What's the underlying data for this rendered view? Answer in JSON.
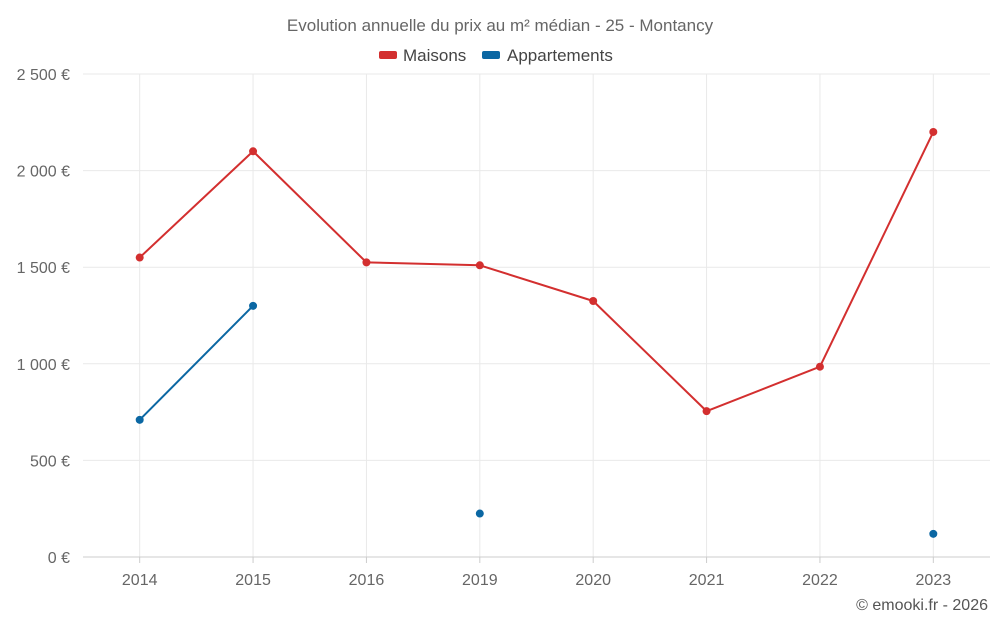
{
  "chart_data": {
    "type": "line",
    "title": "Evolution annuelle du prix au m² médian - 25 - Montancy",
    "categories": [
      "2014",
      "2015",
      "2016",
      "2019",
      "2020",
      "2021",
      "2022",
      "2023"
    ],
    "series": [
      {
        "name": "Maisons",
        "color": "#d32f2f",
        "values": [
          1550,
          2100,
          1525,
          1510,
          1325,
          755,
          985,
          2200
        ]
      },
      {
        "name": "Appartements",
        "color": "#0b67a3",
        "values": [
          710,
          1300,
          null,
          225,
          null,
          null,
          null,
          120
        ]
      }
    ],
    "ylim": [
      0,
      2500
    ],
    "yticks": [
      0,
      500,
      1000,
      1500,
      2000,
      2500
    ],
    "ytick_labels": [
      "0 €",
      "500 €",
      "1 000 €",
      "1 500 €",
      "2 000 €",
      "2 500 €"
    ],
    "grid": true,
    "legend_position": "top-center"
  },
  "credit": "© emooki.fr - 2026"
}
